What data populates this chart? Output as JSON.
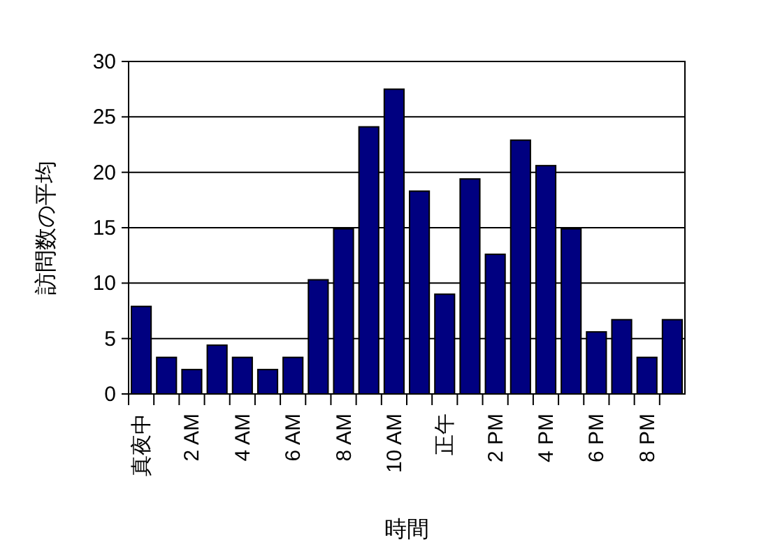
{
  "chart_data": {
    "type": "bar",
    "xlabel": "時間",
    "ylabel": "訪問数の平均",
    "categories": [
      "真夜中",
      null,
      "2 AM",
      null,
      "4 AM",
      null,
      "6 AM",
      null,
      "8 AM",
      null,
      "10 AM",
      null,
      "正午",
      null,
      "2 PM",
      null,
      "4 PM",
      null,
      "6 PM",
      null,
      "8 PM",
      null
    ],
    "values": [
      7.9,
      3.3,
      2.2,
      4.4,
      3.3,
      2.2,
      3.3,
      10.3,
      14.9,
      24.1,
      27.5,
      18.3,
      9.0,
      19.4,
      12.6,
      22.9,
      20.6,
      14.9,
      5.6,
      6.7,
      3.3,
      6.7
    ],
    "color": "#000080",
    "ylim": [
      0,
      30
    ],
    "yticks": [
      0,
      5,
      10,
      15,
      20,
      25,
      30
    ],
    "grid": "y"
  }
}
